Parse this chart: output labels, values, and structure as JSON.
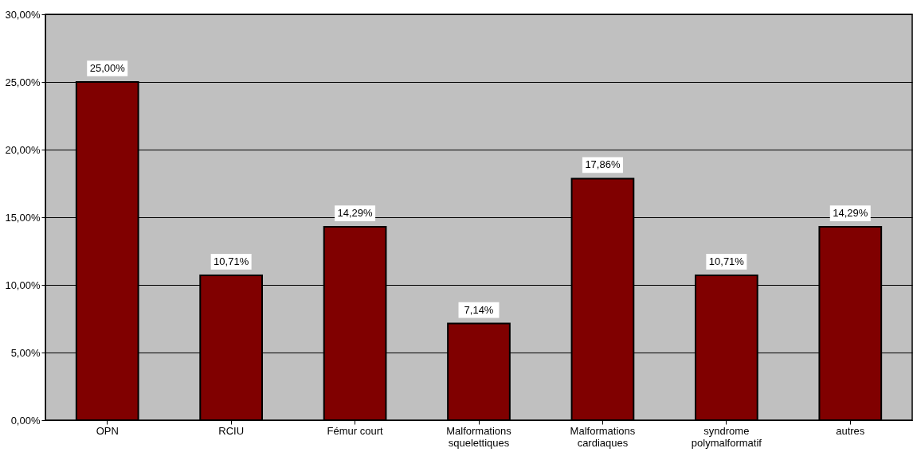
{
  "chart_data": {
    "type": "bar",
    "categories": [
      "OPN",
      "RCIU",
      "Fémur court",
      "Malformations\nsquelettiques",
      "Malformations\ncardiaques",
      "syndrome\npolymalformatif",
      "autres"
    ],
    "values": [
      25.0,
      10.71,
      14.29,
      7.14,
      17.86,
      10.71,
      14.29
    ],
    "value_labels": [
      "25,00%",
      "10,71%",
      "14,29%",
      "7,14%",
      "17,86%",
      "10,71%",
      "14,29%"
    ],
    "color": "#800000",
    "ylim": [
      0,
      30
    ],
    "yticks": [
      {
        "value": 0,
        "label": "0,00%"
      },
      {
        "value": 5,
        "label": "5,00%"
      },
      {
        "value": 10,
        "label": "10,00%"
      },
      {
        "value": 15,
        "label": "15,00%"
      },
      {
        "value": 20,
        "label": "20,00%"
      },
      {
        "value": 25,
        "label": "25,00%"
      },
      {
        "value": 30,
        "label": "30,00%"
      }
    ],
    "grid": "y"
  }
}
